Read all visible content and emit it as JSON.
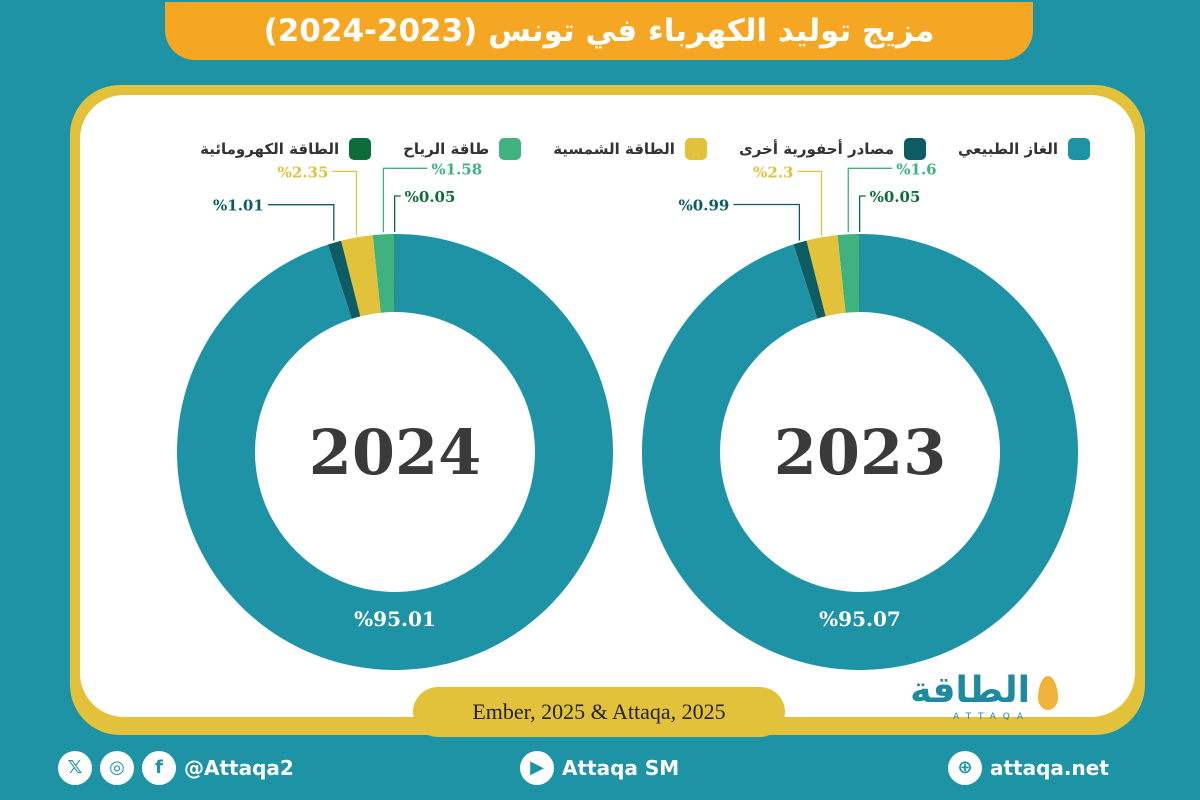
{
  "title": "مزيج توليد الكهرباء في تونس (2023-2024)",
  "legend": [
    {
      "label": "الغاز الطبيعي",
      "color": "#1e93a6"
    },
    {
      "label": "مصادر أحفورية أخرى",
      "color": "#0d5c63"
    },
    {
      "label": "الطاقة الشمسية",
      "color": "#e2c23a"
    },
    {
      "label": "طاقة الرياح",
      "color": "#3fb27f"
    },
    {
      "label": "الطاقة الكهرومائية",
      "color": "#0e6b3a"
    }
  ],
  "chart_data": [
    {
      "type": "pie",
      "center_label": "2024",
      "labels": [
        "الغاز الطبيعي",
        "مصادر أحفورية أخرى",
        "الطاقة الشمسية",
        "طاقة الرياح",
        "الطاقة الكهرومائية"
      ],
      "values": [
        95.01,
        1.01,
        2.35,
        1.58,
        0.05
      ],
      "value_labels": [
        "%95.01",
        "%1.01",
        "%2.35",
        "%1.58",
        "%0.05"
      ]
    },
    {
      "type": "pie",
      "center_label": "2023",
      "labels": [
        "الغاز الطبيعي",
        "مصادر أحفورية أخرى",
        "الطاقة الشمسية",
        "طاقة الرياح",
        "الطاقة الكهرومائية"
      ],
      "values": [
        95.07,
        0.99,
        2.3,
        1.6,
        0.05
      ],
      "value_labels": [
        "%95.07",
        "%0.99",
        "%2.3",
        "%1.6",
        "%0.05"
      ]
    }
  ],
  "source": "Ember, 2025 & Attaqa, 2025",
  "logo": {
    "arabic": "الطاقة",
    "latin": "ATTAQA"
  },
  "footer": {
    "social_handle": "@Attaqa2",
    "youtube": "Attaqa SM",
    "website": "attaqa.net"
  }
}
